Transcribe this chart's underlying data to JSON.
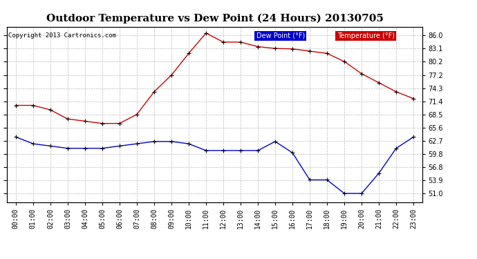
{
  "title": "Outdoor Temperature vs Dew Point (24 Hours) 20130705",
  "copyright": "Copyright 2013 Cartronics.com",
  "legend_dew": "Dew Point (°F)",
  "legend_temp": "Temperature (°F)",
  "hours": [
    0,
    1,
    2,
    3,
    4,
    5,
    6,
    7,
    8,
    9,
    10,
    11,
    12,
    13,
    14,
    15,
    16,
    17,
    18,
    19,
    20,
    21,
    22,
    23
  ],
  "temperature": [
    70.5,
    70.5,
    69.5,
    67.5,
    67.0,
    66.5,
    66.5,
    68.5,
    73.5,
    77.2,
    82.0,
    86.5,
    84.5,
    84.5,
    83.5,
    83.1,
    83.0,
    82.5,
    82.0,
    80.2,
    77.5,
    75.5,
    73.5,
    72.0
  ],
  "dew_point": [
    63.5,
    62.0,
    61.5,
    61.0,
    61.0,
    61.0,
    61.5,
    62.0,
    62.5,
    62.5,
    62.0,
    60.5,
    60.5,
    60.5,
    60.5,
    62.5,
    60.0,
    54.0,
    54.0,
    51.0,
    51.0,
    55.5,
    61.0,
    63.5
  ],
  "ylim_min": 49.1,
  "ylim_max": 87.8,
  "yticks": [
    51.0,
    53.9,
    56.8,
    59.8,
    62.7,
    65.6,
    68.5,
    71.4,
    74.3,
    77.2,
    80.2,
    83.1,
    86.0
  ],
  "temp_color": "#cc0000",
  "dew_color": "#0000cc",
  "marker_color": "#000000",
  "grid_color": "#bbbbbb",
  "bg_color": "#ffffff",
  "title_fontsize": 11,
  "tick_fontsize": 7,
  "copyright_fontsize": 6.5
}
